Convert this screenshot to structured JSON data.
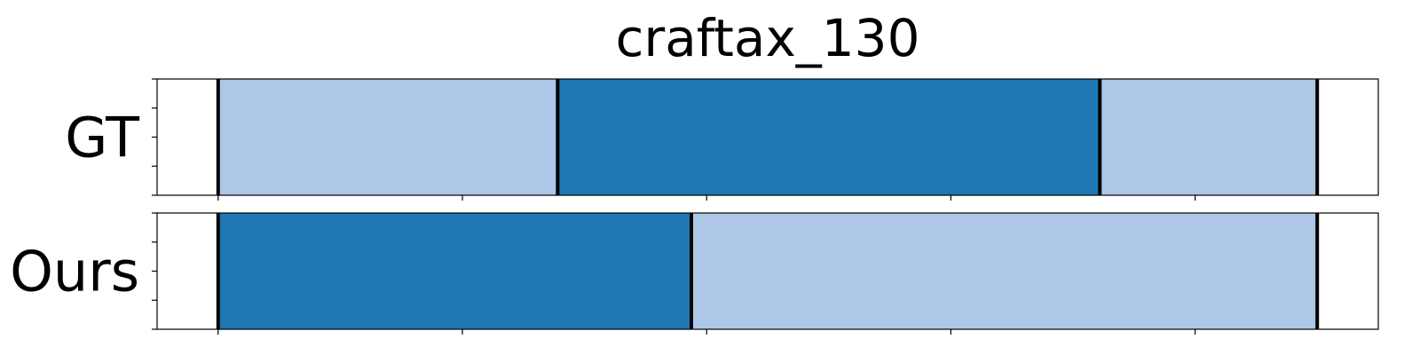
{
  "chart_data": {
    "type": "segmentation_timeline",
    "title": "craftax_130",
    "xlim": [
      0,
      1
    ],
    "colors": {
      "light": "#aec7e8",
      "dark": "#1f77b4",
      "boundary": "#000000"
    },
    "rows": [
      {
        "label": "GT",
        "segments": [
          {
            "start": 0.05,
            "end": 0.328,
            "color": "light"
          },
          {
            "start": 0.328,
            "end": 0.772,
            "color": "dark"
          },
          {
            "start": 0.772,
            "end": 0.95,
            "color": "light"
          }
        ],
        "boundaries": [
          0.05,
          0.328,
          0.772,
          0.95
        ]
      },
      {
        "label": "Ours",
        "segments": [
          {
            "start": 0.05,
            "end": 0.4375,
            "color": "dark"
          },
          {
            "start": 0.4375,
            "end": 0.95,
            "color": "light"
          }
        ],
        "boundaries": [
          0.05,
          0.4375,
          0.95
        ]
      }
    ],
    "xticks": [
      0.05,
      0.25,
      0.45,
      0.65,
      0.85
    ],
    "yticks_per_row": 5
  }
}
